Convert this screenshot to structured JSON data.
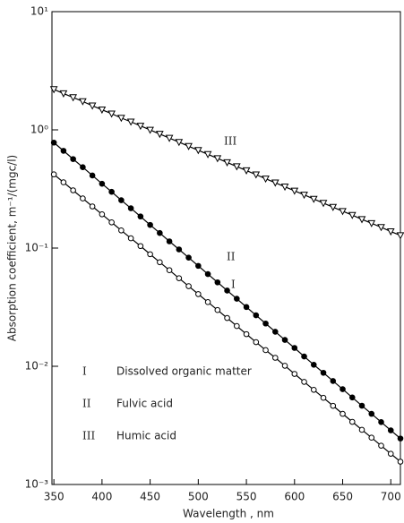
{
  "chart_data": {
    "type": "line",
    "log_y": true,
    "color": "#000000",
    "x_label": "Wavelength , nm",
    "y_label": "Absorption coefficient, m⁻¹/(mgc/l)",
    "x": [
      350,
      360,
      370,
      380,
      390,
      400,
      410,
      420,
      430,
      440,
      450,
      460,
      470,
      480,
      490,
      500,
      510,
      520,
      530,
      540,
      550,
      560,
      570,
      580,
      590,
      600,
      610,
      620,
      630,
      640,
      650,
      660,
      670,
      680,
      690,
      700,
      710
    ],
    "xlim": [
      348,
      710
    ],
    "xticks": [
      350,
      400,
      450,
      500,
      550,
      600,
      650,
      700
    ],
    "ylim": [
      0.001,
      10
    ],
    "yticks": [
      {
        "value": 0.001,
        "label": "10⁻³"
      },
      {
        "value": 0.01,
        "label": "10⁻²"
      },
      {
        "value": 0.1,
        "label": "10⁻¹"
      },
      {
        "value": 1,
        "label": "10⁰"
      },
      {
        "value": 10,
        "label": "10¹"
      }
    ],
    "series": [
      {
        "name": "Dissolved organic matter",
        "label": "I",
        "marker": "circle-open",
        "color": "#000000",
        "values": [
          0.42,
          0.36,
          0.308,
          0.263,
          0.225,
          0.193,
          0.165,
          0.141,
          0.121,
          0.104,
          0.0887,
          0.0759,
          0.065,
          0.0556,
          0.0476,
          0.0408,
          0.0349,
          0.0299,
          0.0256,
          0.0219,
          0.0187,
          0.016,
          0.0137,
          0.0118,
          0.0101,
          0.00862,
          0.00738,
          0.00632,
          0.00541,
          0.00463,
          0.00396,
          0.00339,
          0.0029,
          0.00249,
          0.00213,
          0.00182,
          0.00156
        ]
      },
      {
        "name": "Fulvic acid",
        "label": "II",
        "marker": "circle-filled",
        "color": "#000000",
        "values": [
          0.78,
          0.665,
          0.566,
          0.483,
          0.411,
          0.35,
          0.299,
          0.254,
          0.217,
          0.185,
          0.157,
          0.134,
          0.114,
          0.0974,
          0.083,
          0.0707,
          0.0602,
          0.0513,
          0.0437,
          0.0373,
          0.0317,
          0.027,
          0.023,
          0.0196,
          0.0167,
          0.0143,
          0.0121,
          0.0103,
          0.00881,
          0.00751,
          0.0064,
          0.00545,
          0.00464,
          0.00396,
          0.00337,
          0.00287,
          0.00245
        ]
      },
      {
        "name": "Humic acid",
        "label": "III",
        "marker": "triangle-down",
        "color": "#000000",
        "values": [
          2.2,
          2.03,
          1.88,
          1.74,
          1.6,
          1.48,
          1.37,
          1.26,
          1.17,
          1.08,
          0.998,
          0.922,
          0.852,
          0.787,
          0.727,
          0.672,
          0.621,
          0.574,
          0.53,
          0.49,
          0.453,
          0.418,
          0.386,
          0.357,
          0.33,
          0.305,
          0.282,
          0.26,
          0.24,
          0.222,
          0.205,
          0.19,
          0.175,
          0.162,
          0.15,
          0.138,
          0.128
        ]
      }
    ]
  }
}
